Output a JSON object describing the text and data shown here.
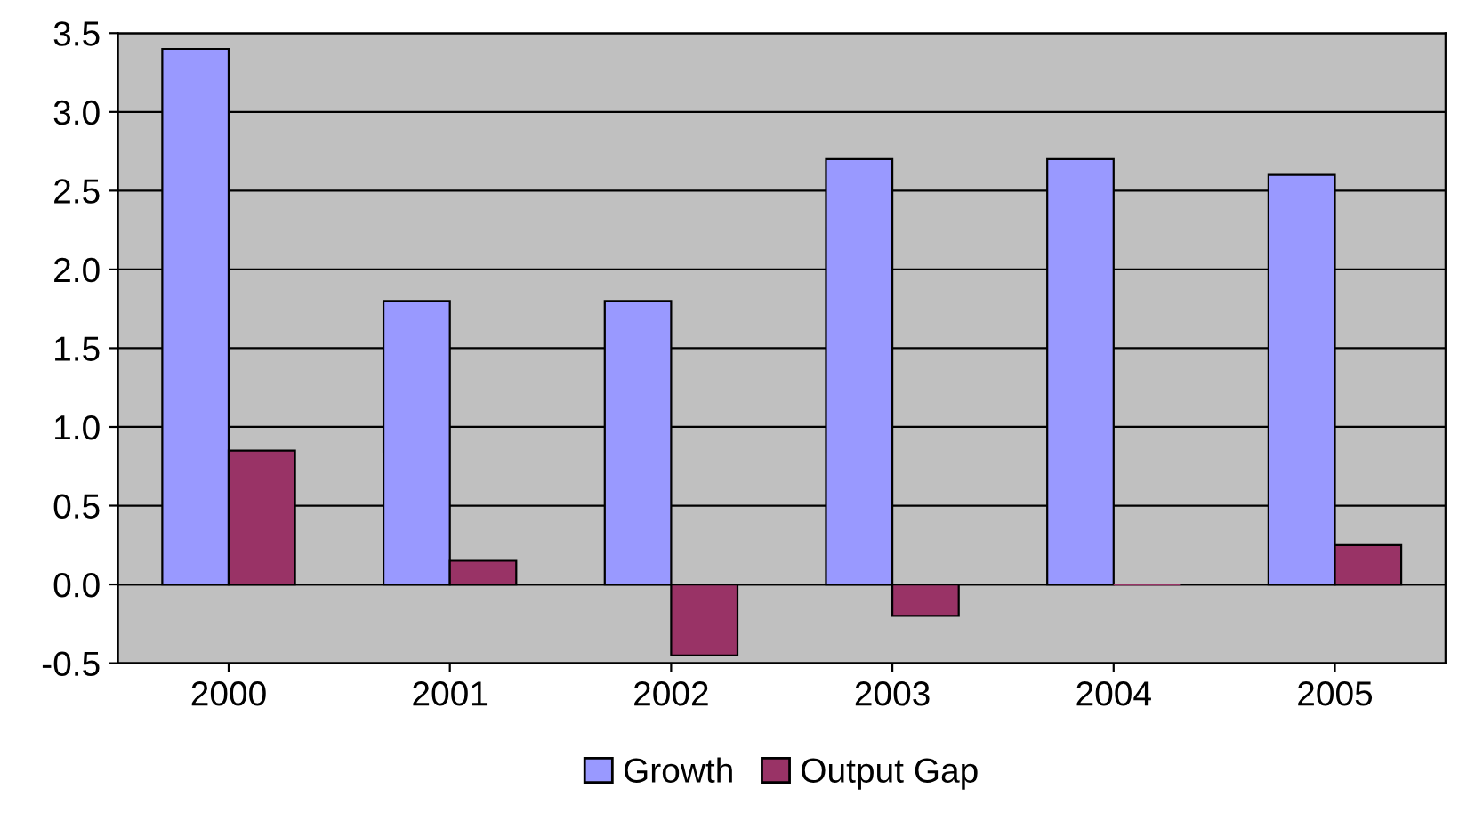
{
  "chart_data": {
    "type": "bar",
    "categories": [
      "2000",
      "2001",
      "2002",
      "2003",
      "2004",
      "2005"
    ],
    "series": [
      {
        "name": "Growth",
        "color": "#9999ff",
        "values": [
          3.4,
          1.8,
          1.8,
          2.7,
          2.7,
          2.6
        ]
      },
      {
        "name": "Output Gap",
        "color": "#993366",
        "values": [
          0.85,
          0.15,
          -0.45,
          -0.2,
          0.0,
          0.25
        ]
      }
    ],
    "ylim": [
      -0.5,
      3.5
    ],
    "yticks": [
      {
        "value": -0.5,
        "label": "-0.5"
      },
      {
        "value": 0,
        "label": "0.0"
      },
      0.5,
      {
        "value": 1,
        "label": "1.0"
      },
      1.5,
      {
        "value": 2,
        "label": "2.0"
      },
      2.5,
      {
        "value": 3,
        "label": "3.0"
      },
      3.5
    ],
    "grid": "y",
    "legend": "bottom"
  }
}
